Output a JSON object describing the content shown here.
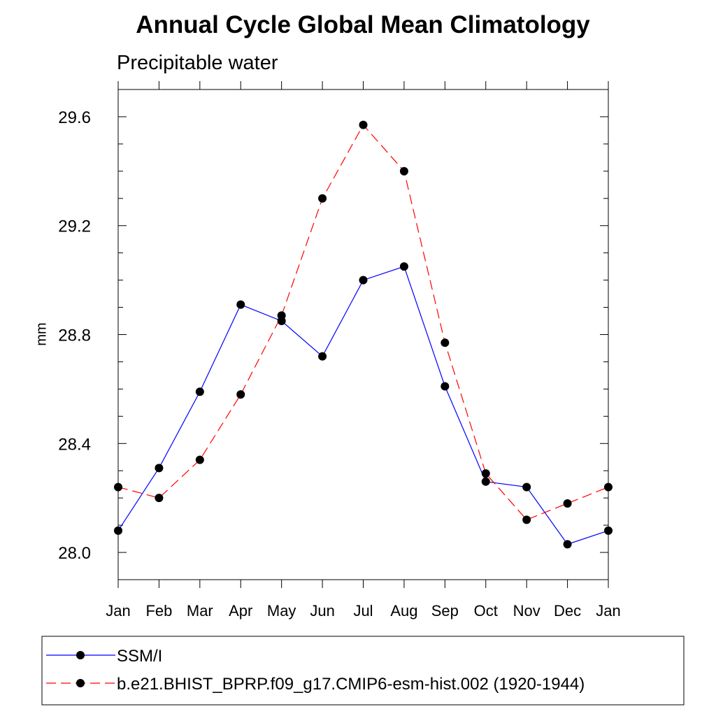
{
  "chart_data": {
    "type": "line",
    "title": "Annual Cycle Global Mean Climatology",
    "subtitle": "Precipitable water",
    "xlabel": "",
    "ylabel": "mm",
    "categories": [
      "Jan",
      "Feb",
      "Mar",
      "Apr",
      "May",
      "Jun",
      "Jul",
      "Aug",
      "Sep",
      "Oct",
      "Nov",
      "Dec",
      "Jan"
    ],
    "ylim": [
      27.9,
      29.7
    ],
    "y_ticks": [
      28.0,
      28.4,
      28.8,
      29.2,
      29.6
    ],
    "y_tick_labels": [
      "28.0",
      "28.4",
      "28.8",
      "29.2",
      "29.6"
    ],
    "y_minor_step": 0.1,
    "grid": false,
    "legend_position": "bottom",
    "series": [
      {
        "name": "SSM/I",
        "color": "#0000ff",
        "style": "solid",
        "marker": "circle",
        "values": [
          28.08,
          28.31,
          28.59,
          28.91,
          28.85,
          28.72,
          29.0,
          29.05,
          28.61,
          28.26,
          28.24,
          28.03,
          28.08
        ]
      },
      {
        "name": "b.e21.BHIST_BPRP.f09_g17.CMIP6-esm-hist.002 (1920-1944)",
        "color": "#ff0000",
        "style": "dashed",
        "marker": "circle",
        "values": [
          28.24,
          28.2,
          28.34,
          28.58,
          28.87,
          29.3,
          29.57,
          29.4,
          28.77,
          28.29,
          28.12,
          28.18,
          28.24
        ]
      }
    ]
  }
}
